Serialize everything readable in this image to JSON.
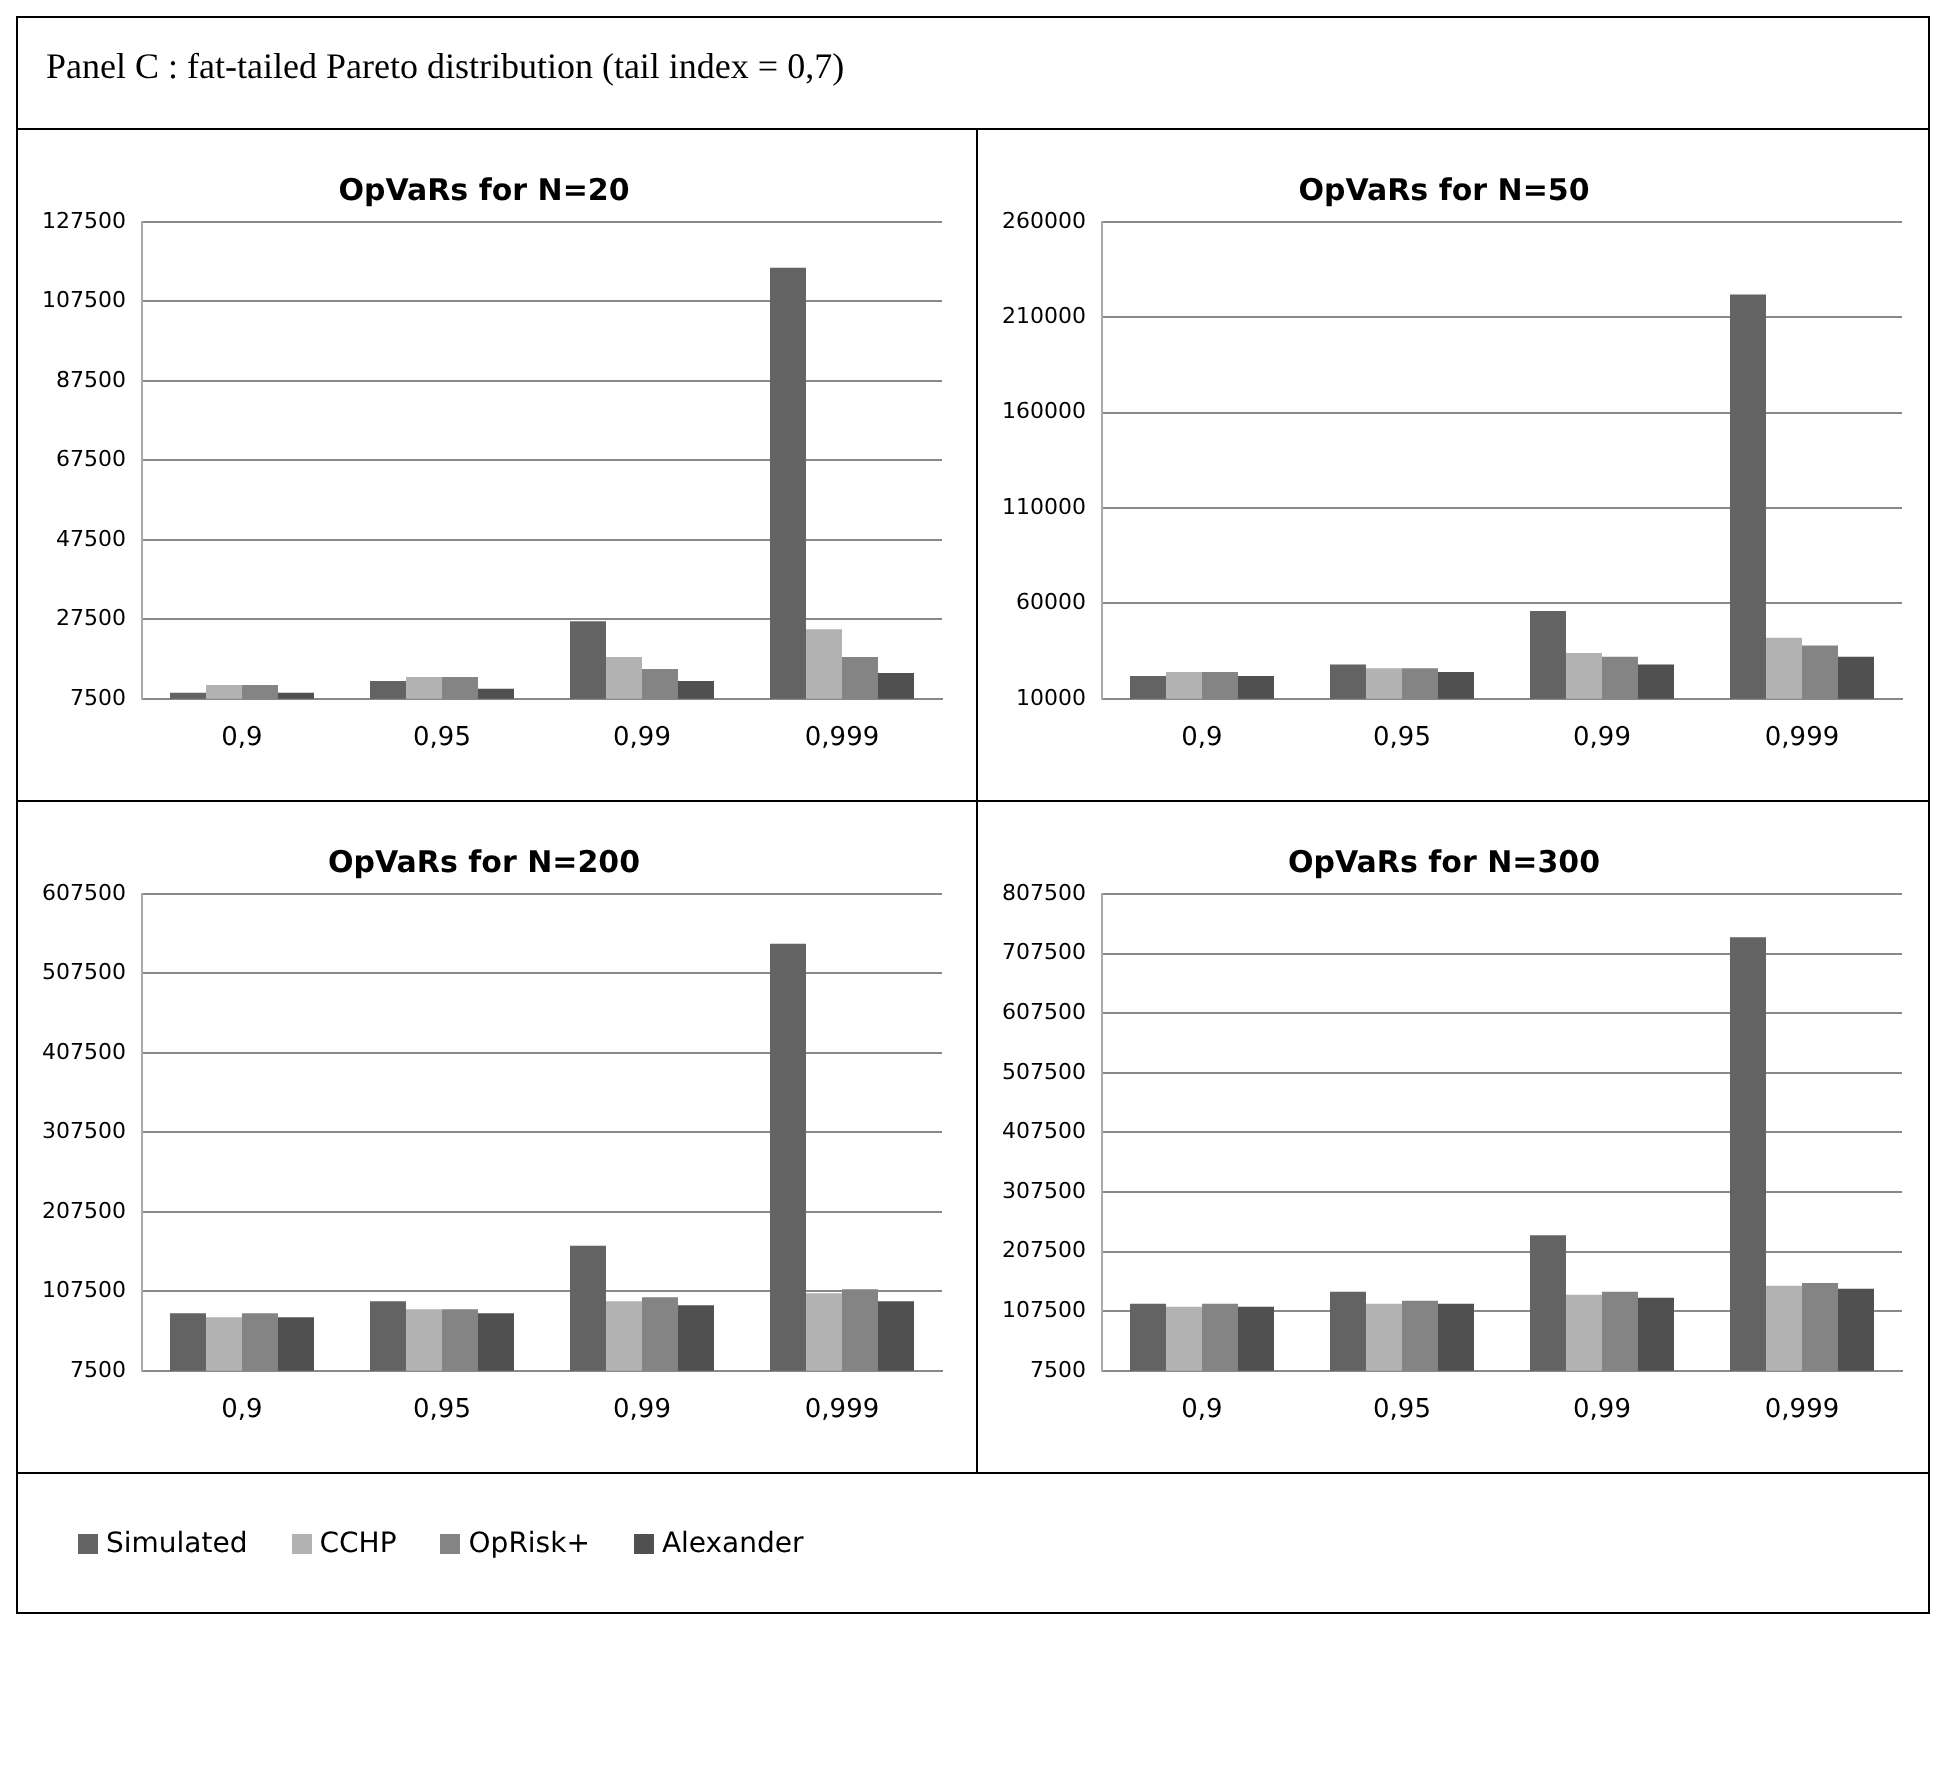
{
  "chart_data": [
    {
      "type": "bar",
      "title": "OpVaRs for N=20",
      "annotations": [
        "Panel C : fat-tailed Pareto distribution (tail index = 0,7)"
      ],
      "categories": [
        "0,9",
        "0,95",
        "0,99",
        "0,999"
      ],
      "series": [
        {
          "name": "Simulated",
          "color": "#636363",
          "values": [
            9000,
            12000,
            27000,
            116000
          ]
        },
        {
          "name": "CCHP",
          "color": "#b2b2b2",
          "values": [
            11000,
            13000,
            18000,
            25000
          ]
        },
        {
          "name": "OpRisk+",
          "color": "#848484",
          "values": [
            11000,
            13000,
            15000,
            18000
          ]
        },
        {
          "name": "Alexander",
          "color": "#505050",
          "values": [
            9000,
            10000,
            12000,
            14000
          ]
        }
      ],
      "ylim": [
        7500,
        127500
      ],
      "yticks": [
        7500,
        27500,
        47500,
        67500,
        87500,
        107500,
        127500
      ],
      "grid": "y",
      "legend": "bottom"
    },
    {
      "type": "bar",
      "title": "OpVaRs for N=50",
      "categories": [
        "0,9",
        "0,95",
        "0,99",
        "0,999"
      ],
      "series": [
        {
          "color": "#636363",
          "values": [
            22000,
            28000,
            56000,
            222000
          ]
        },
        {
          "color": "#b2b2b2",
          "values": [
            24000,
            26000,
            34000,
            42000
          ]
        },
        {
          "color": "#848484",
          "values": [
            24000,
            26000,
            32000,
            38000
          ]
        },
        {
          "color": "#505050",
          "values": [
            22000,
            24000,
            28000,
            32000
          ]
        }
      ],
      "ylim": [
        10000,
        260000
      ],
      "yticks": [
        10000,
        60000,
        110000,
        160000,
        210000,
        260000
      ],
      "grid": "y"
    },
    {
      "type": "bar",
      "title": "OpVaRs for N=200",
      "categories": [
        "0,9",
        "0,95",
        "0,99",
        "0,999"
      ],
      "series": [
        {
          "color": "#636363",
          "values": [
            80000,
            95000,
            165000,
            545000
          ]
        },
        {
          "color": "#b2b2b2",
          "values": [
            75000,
            85000,
            95000,
            105000
          ]
        },
        {
          "color": "#848484",
          "values": [
            80000,
            85000,
            100000,
            110000
          ]
        },
        {
          "color": "#505050",
          "values": [
            75000,
            80000,
            90000,
            95000
          ]
        }
      ],
      "ylim": [
        7500,
        607500
      ],
      "yticks": [
        7500,
        107500,
        207500,
        307500,
        407500,
        507500,
        607500
      ],
      "grid": "y"
    },
    {
      "type": "bar",
      "title": "OpVaRs for N=300",
      "categories": [
        "0,9",
        "0,95",
        "0,99",
        "0,999"
      ],
      "series": [
        {
          "color": "#636363",
          "values": [
            120000,
            140000,
            235000,
            735000
          ]
        },
        {
          "color": "#b2b2b2",
          "values": [
            115000,
            120000,
            135000,
            150000
          ]
        },
        {
          "color": "#848484",
          "values": [
            120000,
            125000,
            140000,
            155000
          ]
        },
        {
          "color": "#505050",
          "values": [
            115000,
            120000,
            130000,
            145000
          ]
        }
      ],
      "ylim": [
        7500,
        807500
      ],
      "yticks": [
        7500,
        107500,
        207500,
        307500,
        407500,
        507500,
        607500,
        707500,
        807500
      ],
      "grid": "y"
    }
  ]
}
